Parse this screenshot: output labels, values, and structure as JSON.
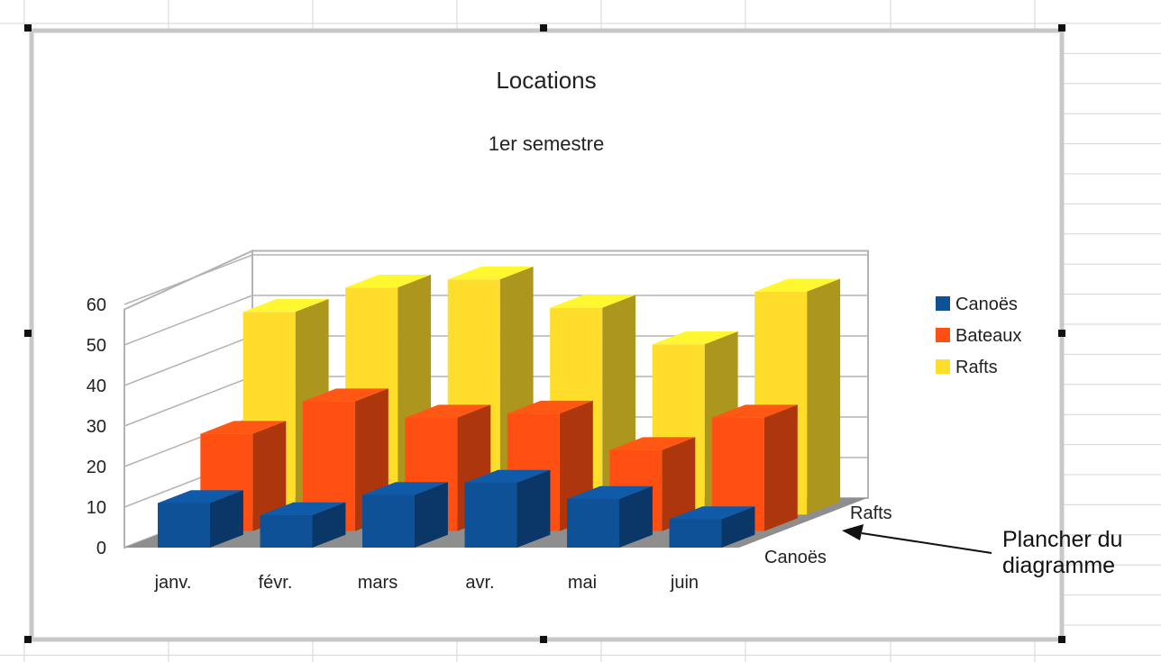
{
  "chart_data": {
    "type": "bar",
    "subtype": "3d-deep",
    "title": "Locations",
    "subtitle": "1er semestre",
    "categories": [
      "janv.",
      "févr.",
      "mars",
      "avr.",
      "mai",
      "juin"
    ],
    "series": [
      {
        "name": "Canoës",
        "values": [
          11,
          8,
          13,
          16,
          12,
          7
        ]
      },
      {
        "name": "Bateaux",
        "values": [
          24,
          32,
          28,
          29,
          20,
          28
        ]
      },
      {
        "name": "Rafts",
        "values": [
          50,
          56,
          58,
          51,
          42,
          55
        ]
      }
    ],
    "depth_labels": [
      "Canoës",
      "Rafts"
    ],
    "yticks": [
      0,
      10,
      20,
      30,
      40,
      50,
      60
    ],
    "ylim": [
      0,
      60
    ],
    "grid": true,
    "legend": "right"
  },
  "colors": {
    "series": [
      "#0e5197",
      "#ff4f12",
      "#ffdd2b"
    ],
    "floor": "#8e8e8e",
    "wall": "#b3b3b3",
    "frame": "#c8c8c8",
    "sheet_grid": "#d4d4d4"
  },
  "annotation": {
    "line1": "Plancher du",
    "line2": "diagramme"
  }
}
